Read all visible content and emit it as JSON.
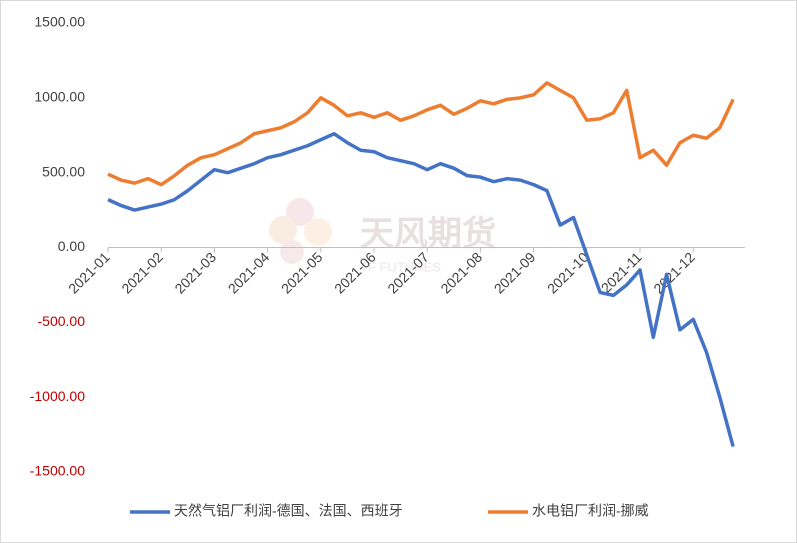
{
  "chart_data": {
    "type": "line",
    "watermark": "天风期货",
    "watermark_sub": "TF FUTURES",
    "categories": [
      "2021-01",
      null,
      null,
      null,
      "2021-02",
      null,
      null,
      null,
      "2021-03",
      null,
      null,
      null,
      "2021-04",
      null,
      null,
      null,
      "2021-05",
      null,
      null,
      null,
      "2021-06",
      null,
      null,
      null,
      "2021-07",
      null,
      null,
      null,
      "2021-08",
      null,
      null,
      null,
      "2021-09",
      null,
      null,
      null,
      "2021-10",
      null,
      null,
      null,
      "2021-11",
      null,
      null,
      null,
      "2021-12",
      null,
      null,
      null
    ],
    "series": [
      {
        "name": "天然气铝厂利润-德国、法国、西班牙",
        "color": "#4472c4",
        "values": [
          320,
          280,
          250,
          270,
          290,
          320,
          380,
          450,
          520,
          500,
          530,
          560,
          600,
          620,
          650,
          680,
          720,
          760,
          700,
          650,
          640,
          600,
          580,
          560,
          520,
          560,
          530,
          480,
          470,
          440,
          460,
          450,
          420,
          380,
          150,
          200,
          -50,
          -300,
          -320,
          -250,
          -150,
          -600,
          -180,
          -550,
          -480,
          -700,
          -1000,
          -1330
        ]
      },
      {
        "name": "水电铝厂利润-挪威",
        "color": "#ed7d31",
        "values": [
          490,
          450,
          430,
          460,
          420,
          480,
          550,
          600,
          620,
          660,
          700,
          760,
          780,
          800,
          840,
          900,
          1000,
          950,
          880,
          900,
          870,
          900,
          850,
          880,
          920,
          950,
          890,
          930,
          980,
          960,
          990,
          1000,
          1020,
          1100,
          1050,
          1000,
          850,
          860,
          900,
          1050,
          600,
          650,
          550,
          700,
          750,
          730,
          800,
          990
        ]
      }
    ],
    "ylim": [
      -1500,
      1500
    ],
    "yticks": [
      {
        "value": -1500,
        "label": "-1500.00"
      },
      {
        "value": -1000,
        "label": "-1000.00"
      },
      {
        "value": -500,
        "label": "-500.00"
      },
      {
        "value": 0,
        "label": "0.00"
      },
      {
        "value": 500,
        "label": "500.00"
      },
      {
        "value": 1000,
        "label": "1000.00"
      },
      {
        "value": 1500,
        "label": "1500.00"
      }
    ],
    "negative_label_color": "#c00000",
    "grid": false,
    "legend": "bottom"
  }
}
